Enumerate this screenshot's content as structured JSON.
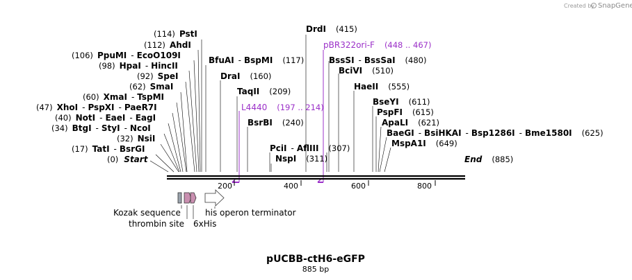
{
  "map": {
    "title": "pUCBB-ctH6-eGFP",
    "length": 885,
    "length_label": "885 bp",
    "credit": {
      "prefix": "Created by",
      "brand": "SnapGene"
    },
    "ruler_ticks": [
      {
        "value": 200,
        "label": "200"
      },
      {
        "value": 400,
        "label": "400"
      },
      {
        "value": 600,
        "label": "600"
      },
      {
        "value": 800,
        "label": "800"
      }
    ],
    "colors": {
      "primer": "#9b30c8",
      "feature_pink": "#c98fb0",
      "feature_gray": "#9aa3ad",
      "backbone": "#000000"
    }
  },
  "sites": [
    {
      "names": [
        "PstI"
      ],
      "pos_label": "(114)",
      "position": 114
    },
    {
      "names": [
        "AhdI"
      ],
      "pos_label": "(112)",
      "position": 112
    },
    {
      "names": [
        "PpuMI",
        "EcoO109I"
      ],
      "pos_label": "(106)",
      "position": 106
    },
    {
      "names": [
        "HpaI",
        "HincII"
      ],
      "pos_label": "(98)",
      "position": 98
    },
    {
      "names": [
        "SpeI"
      ],
      "pos_label": "(92)",
      "position": 92
    },
    {
      "names": [
        "SmaI"
      ],
      "pos_label": "(62)",
      "position": 62
    },
    {
      "names": [
        "XmaI",
        "TspMI"
      ],
      "pos_label": "(60)",
      "position": 60
    },
    {
      "names": [
        "XhoI",
        "PspXI",
        "PaeR7I"
      ],
      "pos_label": "(47)",
      "position": 47
    },
    {
      "names": [
        "NotI",
        "EaeI",
        "EagI"
      ],
      "pos_label": "(40)",
      "position": 40
    },
    {
      "names": [
        "BtgI",
        "StyI",
        "NcoI"
      ],
      "pos_label": "(34)",
      "position": 34
    },
    {
      "names": [
        "NsiI"
      ],
      "pos_label": "(32)",
      "position": 32
    },
    {
      "names": [
        "TatI",
        "BsrGI"
      ],
      "pos_label": "(17)",
      "position": 17
    },
    {
      "names": [
        "Start"
      ],
      "pos_label": "(0)",
      "position": 0,
      "italic": true
    },
    {
      "names": [
        "BfuAI",
        "BspMI"
      ],
      "pos_label": "(117)",
      "position": 117
    },
    {
      "names": [
        "DraI"
      ],
      "pos_label": "(160)",
      "position": 160
    },
    {
      "names": [
        "TaqII"
      ],
      "pos_label": "(209)",
      "position": 209
    },
    {
      "names": [
        "BsrBI"
      ],
      "pos_label": "(240)",
      "position": 240
    },
    {
      "names": [
        "DrdI"
      ],
      "pos_label": "(415)",
      "position": 415
    },
    {
      "names": [
        "PciI",
        "AflIII"
      ],
      "pos_label": "(307)",
      "position": 307
    },
    {
      "names": [
        "NspI"
      ],
      "pos_label": "(311)",
      "position": 311
    },
    {
      "names": [
        "BssSI",
        "BssSaI"
      ],
      "pos_label": "(480)",
      "position": 480
    },
    {
      "names": [
        "BciVI"
      ],
      "pos_label": "(510)",
      "position": 510
    },
    {
      "names": [
        "HaeII"
      ],
      "pos_label": "(555)",
      "position": 555
    },
    {
      "names": [
        "BseYI"
      ],
      "pos_label": "(611)",
      "position": 611
    },
    {
      "names": [
        "PspFI"
      ],
      "pos_label": "(615)",
      "position": 615
    },
    {
      "names": [
        "ApaLI"
      ],
      "pos_label": "(621)",
      "position": 621
    },
    {
      "names": [
        "BaeGI",
        "BsiHKAI",
        "Bsp1286I",
        "Bme1580I"
      ],
      "pos_label": "(625)",
      "position": 625
    },
    {
      "names": [
        "MspA1I"
      ],
      "pos_label": "(649)",
      "position": 649
    },
    {
      "names": [
        "End"
      ],
      "pos_label": "(885)",
      "position": 885,
      "italic": true
    }
  ],
  "primers": [
    {
      "name": "L4440",
      "range_label": "(197 .. 214)",
      "start": 197,
      "end": 214,
      "direction": "reverse"
    },
    {
      "name": "pBR322ori-F",
      "range_label": "(448 .. 467)",
      "start": 448,
      "end": 467,
      "direction": "reverse"
    }
  ],
  "features": [
    {
      "name": "Kozak sequence",
      "color": "#9aa3ad"
    },
    {
      "name": "thrombin site",
      "color": "#c98fb0"
    },
    {
      "name": "6xHis",
      "color": "#c98fb0"
    },
    {
      "name": "his operon terminator",
      "color": "#ffffff"
    }
  ]
}
